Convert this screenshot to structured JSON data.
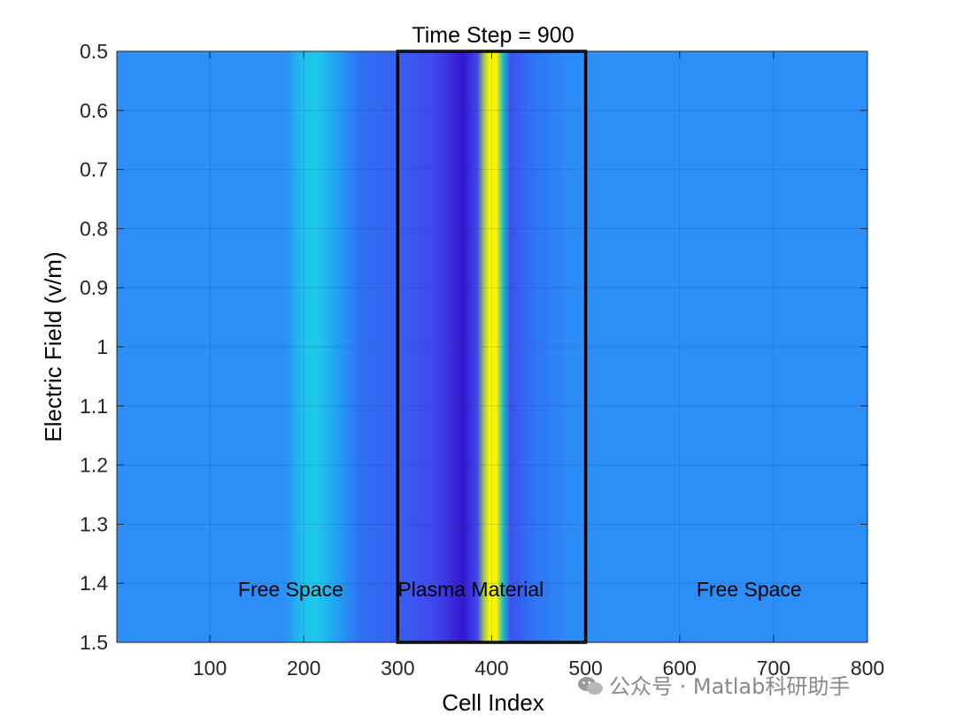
{
  "chart_data": {
    "type": "heatmap",
    "title": "Time Step = 900",
    "xlabel": "Cell Index",
    "ylabel": "Electric Field (v/m)",
    "xlim": [
      1,
      800
    ],
    "ylim": [
      0.5,
      1.5
    ],
    "y_reversed": true,
    "grid": true,
    "xticks": [
      100,
      200,
      300,
      400,
      500,
      600,
      700,
      800
    ],
    "yticks": [
      0.5,
      0.6,
      0.7,
      0.8,
      0.9,
      1,
      1.1,
      1.2,
      1.3,
      1.4,
      1.5
    ],
    "ytick_labels": [
      "0.5",
      "0.6",
      "0.7",
      "0.8",
      "0.9",
      "1",
      "1.1",
      "1.2",
      "1.3",
      "1.4",
      "1.5"
    ],
    "colormap": "parula",
    "color_profile": {
      "x": [
        1,
        180,
        190,
        200,
        215,
        230,
        260,
        300,
        340,
        370,
        385,
        392,
        398,
        405,
        412,
        420,
        440,
        480,
        500,
        800
      ],
      "level": [
        0.45,
        0.45,
        0.48,
        0.52,
        0.53,
        0.48,
        0.38,
        0.34,
        0.27,
        0.17,
        0.28,
        0.7,
        0.98,
        0.95,
        0.6,
        0.3,
        0.38,
        0.44,
        0.45,
        0.45
      ]
    },
    "regions": [
      {
        "x_range": [
          300,
          500
        ],
        "outlined": true
      }
    ],
    "annotations": [
      {
        "text": "Free Space",
        "x": 130,
        "y": 1.41
      },
      {
        "text": "Plasma Material",
        "x": 300,
        "y": 1.41
      },
      {
        "text": "Free Space",
        "x": 618,
        "y": 1.41
      }
    ],
    "colors": {
      "outline": "#000000",
      "grid": "#1a3d70",
      "text": "#000000"
    }
  },
  "watermark": "公众号 · Matlab科研助手"
}
